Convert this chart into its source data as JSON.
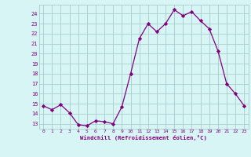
{
  "x": [
    0,
    1,
    2,
    3,
    4,
    5,
    6,
    7,
    8,
    9,
    10,
    11,
    12,
    13,
    14,
    15,
    16,
    17,
    18,
    19,
    20,
    21,
    22,
    23
  ],
  "y": [
    14.8,
    14.4,
    14.9,
    14.1,
    12.9,
    12.8,
    13.3,
    13.2,
    13.0,
    14.7,
    18.0,
    21.5,
    23.0,
    22.2,
    23.0,
    24.4,
    23.8,
    24.2,
    23.3,
    22.5,
    20.3,
    17.0,
    16.0,
    14.8
  ],
  "line_color": "#800080",
  "marker": "D",
  "marker_size": 2.2,
  "bg_color": "#d8f5f5",
  "grid_color": "#aacccc",
  "xlabel": "Windchill (Refroidissement éolien,°C)",
  "xlabel_color": "#800080",
  "tick_color": "#800080",
  "ylim": [
    12.5,
    24.9
  ],
  "xlim": [
    -0.5,
    23.5
  ],
  "yticks": [
    13,
    14,
    15,
    16,
    17,
    18,
    19,
    20,
    21,
    22,
    23,
    24
  ],
  "xticks": [
    0,
    1,
    2,
    3,
    4,
    5,
    6,
    7,
    8,
    9,
    10,
    11,
    12,
    13,
    14,
    15,
    16,
    17,
    18,
    19,
    20,
    21,
    22,
    23
  ]
}
